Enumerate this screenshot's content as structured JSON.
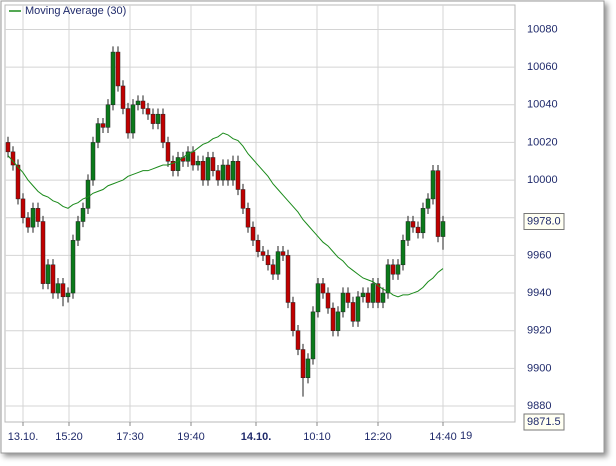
{
  "chart_data": {
    "type": "candlestick",
    "x": [
      0,
      1,
      2,
      3,
      4,
      5,
      6,
      7,
      8,
      9,
      10,
      11,
      12,
      13,
      14,
      15,
      16,
      17,
      18,
      19,
      20,
      21,
      22,
      23,
      24,
      25,
      26,
      27,
      28,
      29,
      30,
      31,
      32,
      33,
      34,
      35,
      36,
      37,
      38,
      39,
      40,
      41,
      42,
      43,
      44,
      45,
      46,
      47,
      48,
      49,
      50,
      51,
      52,
      53,
      54,
      55,
      56,
      57,
      58,
      59,
      60,
      61,
      62,
      63,
      64,
      65,
      66,
      67,
      68,
      69,
      70,
      71,
      72,
      73,
      74,
      75,
      76,
      77,
      78,
      79,
      80,
      81,
      82,
      83,
      84,
      85,
      86,
      87
    ],
    "candles": {
      "up_color": "#0a7a1a",
      "down_color": "#c00000",
      "open": [
        10020,
        10015,
        10008,
        9990,
        9980,
        9975,
        9985,
        9978,
        9945,
        9955,
        9940,
        9945,
        9938,
        9940,
        9968,
        9978,
        9985,
        10000,
        10020,
        10030,
        10028,
        10040,
        10068,
        10050,
        10038,
        10025,
        10040,
        10042,
        10038,
        10035,
        10030,
        10035,
        10020,
        10010,
        10005,
        10012,
        10010,
        10015,
        10008,
        10010,
        10000,
        10012,
        10005,
        10000,
        10008,
        10000,
        10010,
        9995,
        9985,
        9975,
        9968,
        9962,
        9960,
        9955,
        9950,
        9962,
        9960,
        9935,
        9920,
        9910,
        9895,
        9905,
        9930,
        9945,
        9940,
        9932,
        9920,
        9930,
        9940,
        9935,
        9925,
        9938,
        9940,
        9935,
        9945,
        9935,
        9940,
        9955,
        9950,
        9955,
        9968,
        9978,
        9975,
        9972,
        9985,
        9990,
        10005,
        9970
      ],
      "high": [
        10023,
        10018,
        10011,
        9993,
        9983,
        9988,
        9988,
        9981,
        9958,
        9958,
        9948,
        9948,
        9943,
        9971,
        9981,
        9988,
        10003,
        10023,
        10033,
        10033,
        10043,
        10071,
        10071,
        10053,
        10041,
        10043,
        10045,
        10045,
        10041,
        10038,
        10038,
        10038,
        10023,
        10013,
        10015,
        10015,
        10018,
        10018,
        10013,
        10013,
        10015,
        10015,
        10008,
        10011,
        10011,
        10013,
        10013,
        9998,
        9988,
        9978,
        9971,
        9965,
        9963,
        9958,
        9965,
        9965,
        9963,
        9938,
        9923,
        9913,
        9908,
        9933,
        9948,
        9948,
        9943,
        9935,
        9933,
        9943,
        9943,
        9938,
        9941,
        9943,
        9943,
        9948,
        9948,
        9943,
        9958,
        9958,
        9958,
        9971,
        9981,
        9981,
        9978,
        9988,
        9993,
        10008,
        10008,
        9981
      ],
      "low": [
        10012,
        10005,
        9987,
        9977,
        9972,
        9972,
        9975,
        9942,
        9942,
        9937,
        9937,
        9933,
        9935,
        9937,
        9965,
        9975,
        9982,
        9997,
        10017,
        10025,
        10025,
        10037,
        10047,
        10035,
        10022,
        10022,
        10037,
        10035,
        10032,
        10027,
        10027,
        10017,
        10007,
        10002,
        10002,
        10007,
        10007,
        10005,
        10005,
        9997,
        9997,
        10002,
        9997,
        9997,
        9997,
        9997,
        9992,
        9982,
        9972,
        9965,
        9959,
        9957,
        9952,
        9947,
        9947,
        9957,
        9932,
        9917,
        9907,
        9885,
        9892,
        9902,
        9927,
        9937,
        9929,
        9917,
        9917,
        9927,
        9932,
        9922,
        9922,
        9935,
        9932,
        9932,
        9932,
        9932,
        9937,
        9947,
        9947,
        9952,
        9965,
        9972,
        9969,
        9969,
        9982,
        9987,
        9967,
        9963
      ],
      "close": [
        10015,
        10008,
        9990,
        9980,
        9975,
        9985,
        9978,
        9945,
        9955,
        9940,
        9945,
        9938,
        9940,
        9968,
        9978,
        9985,
        10000,
        10020,
        10030,
        10028,
        10040,
        10068,
        10050,
        10038,
        10025,
        10040,
        10042,
        10038,
        10035,
        10030,
        10035,
        10020,
        10010,
        10005,
        10012,
        10010,
        10015,
        10008,
        10010,
        10000,
        10012,
        10005,
        10000,
        10008,
        10000,
        10010,
        9995,
        9985,
        9975,
        9968,
        9962,
        9960,
        9955,
        9950,
        9962,
        9960,
        9935,
        9920,
        9910,
        9895,
        9905,
        9930,
        9945,
        9940,
        9932,
        9920,
        9930,
        9940,
        9935,
        9925,
        9938,
        9940,
        9935,
        9945,
        9935,
        9940,
        9955,
        9950,
        9955,
        9968,
        9978,
        9975,
        9972,
        9985,
        9990,
        10005,
        9970,
        9978
      ]
    },
    "series": [
      {
        "name": "Moving Average  (30)",
        "color": "#1a8a1a",
        "values": [
          10013,
          10010,
          10007,
          10004,
          10000,
          9997,
          9994,
          9992,
          9991,
          9989,
          9988,
          9986,
          9985,
          9987,
          9988,
          9990,
          9991,
          9993,
          9994,
          9995,
          9997,
          9998,
          9999,
          10000,
          10002,
          10003,
          10004,
          10005,
          10005,
          10006,
          10007,
          10008,
          10008,
          10009,
          10010,
          10012,
          10014,
          10015,
          10017,
          10019,
          10020,
          10022,
          10023,
          10025,
          10024,
          10022,
          10021,
          10018,
          10014,
          10011,
          10008,
          10005,
          10002,
          9998,
          9995,
          9992,
          9989,
          9986,
          9983,
          9979,
          9976,
          9973,
          9970,
          9967,
          9965,
          9962,
          9959,
          9957,
          9954,
          9952,
          9950,
          9948,
          9947,
          9946,
          9944,
          9942,
          9941,
          9939,
          9938,
          9939,
          9939,
          9940,
          9941,
          9943,
          9946,
          9948,
          9951,
          9953
        ]
      }
    ],
    "xlim": [
      -0.6,
      101.4
    ],
    "ylim": [
      9871.5,
      10093
    ],
    "yticks": [
      9880,
      9900,
      9920,
      9940,
      9960,
      9980,
      10000,
      10020,
      10040,
      10060,
      10080
    ],
    "xticks": [
      {
        "value": 3,
        "label": "13.10."
      },
      {
        "value": 12.2,
        "label": "15:20"
      },
      {
        "value": 24.4,
        "label": "17:30"
      },
      {
        "value": 36.6,
        "label": "19:40"
      },
      {
        "value": 49.6,
        "label": "14.10.",
        "bold": true
      },
      {
        "value": 61.8,
        "label": "10:10"
      },
      {
        "value": 74,
        "label": "12:20"
      },
      {
        "value": 87,
        "label": "14:40"
      }
    ],
    "last_price": {
      "value": 9978,
      "label": "9978.0"
    },
    "bottom_label": {
      "value": 9871.5,
      "label": "9871.5"
    },
    "corner_note": "19",
    "grid": true
  }
}
